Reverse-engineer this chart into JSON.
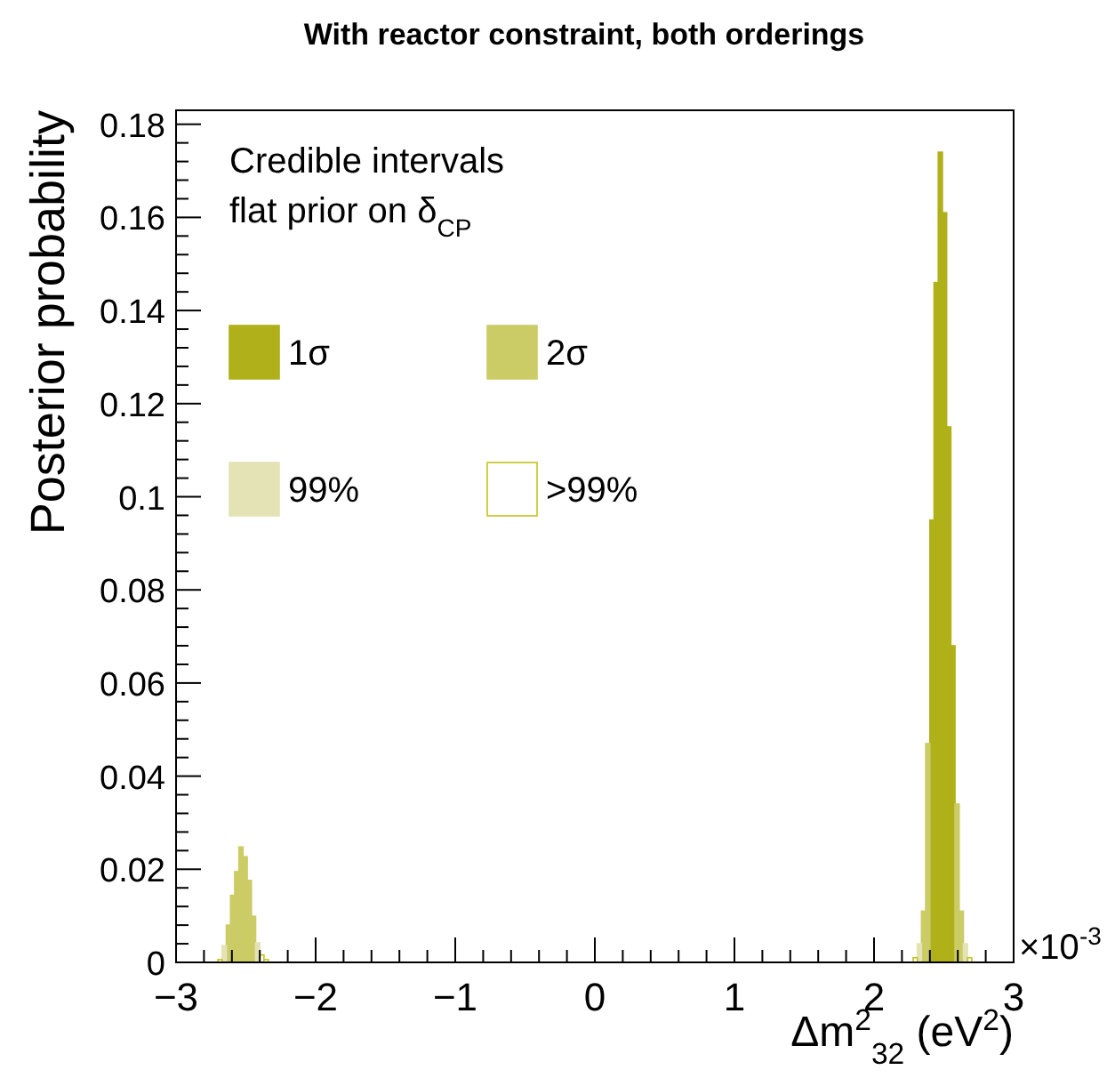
{
  "chart_data": {
    "type": "histogram",
    "title": "With reactor constraint, both orderings",
    "xlabel": "Δm$^{2}$$_{32}$ (eV$^{2}$)",
    "ylabel": "Posterior probability",
    "legend_title": "Credible intervals\nflat prior on δ$_{CP}$",
    "legend": "top left",
    "annotations": [
      "×10$^{-3}$"
    ],
    "bins": [
      -2.7,
      -2.67,
      -2.64,
      -2.61,
      -2.58,
      -2.55,
      -2.52,
      -2.49,
      -2.46,
      -2.43,
      -2.4,
      -2.37,
      -2.34,
      2.28,
      2.31,
      2.34,
      2.37,
      2.4,
      2.43,
      2.46,
      2.49,
      2.52,
      2.55,
      2.58,
      2.61,
      2.64,
      2.67,
      2.7
    ],
    "series": [
      {
        "name": "1σ",
        "color": "#b0b01a",
        "values": [
          null,
          null,
          null,
          null,
          null,
          null,
          null,
          null,
          null,
          null,
          null,
          null,
          null,
          null,
          null,
          null,
          null,
          0.095,
          0.146,
          0.174,
          0.161,
          0.115,
          0.068,
          null,
          null,
          null,
          null
        ]
      },
      {
        "name": "2σ",
        "color": "#cccc66",
        "values": [
          null,
          null,
          0.008,
          0.0144,
          0.0195,
          0.0248,
          0.0227,
          0.0176,
          0.0099,
          null,
          null,
          null,
          null,
          null,
          null,
          0.011,
          0.047,
          null,
          null,
          null,
          null,
          null,
          null,
          0.034,
          0.011,
          null,
          null
        ]
      },
      {
        "name": "99%",
        "color": "#e3e3b6",
        "values": [
          null,
          0.0036,
          null,
          null,
          null,
          null,
          null,
          null,
          null,
          0.0042,
          null,
          null,
          null,
          null,
          0.004,
          null,
          null,
          null,
          null,
          null,
          null,
          null,
          null,
          null,
          null,
          0.004,
          null
        ]
      },
      {
        "name": ">99%",
        "color": "#ffffff",
        "values": [
          0.0006,
          null,
          null,
          null,
          null,
          null,
          null,
          null,
          null,
          null,
          0.0016,
          0.0006,
          0,
          0.001,
          null,
          null,
          null,
          null,
          null,
          null,
          null,
          null,
          null,
          null,
          null,
          null,
          0.001
        ]
      }
    ],
    "xlim": [
      -3,
      3
    ],
    "xticks": [
      {
        "value": -3,
        "label": "−3"
      },
      {
        "value": -2,
        "label": "−2"
      },
      {
        "value": -1,
        "label": "−1"
      },
      0,
      1,
      2,
      3
    ],
    "ylim": [
      0,
      0.183
    ],
    "yticks": [
      0,
      0.02,
      0.04,
      0.06,
      0.08,
      0.1,
      0.12,
      0.14,
      0.16,
      0.18
    ]
  }
}
